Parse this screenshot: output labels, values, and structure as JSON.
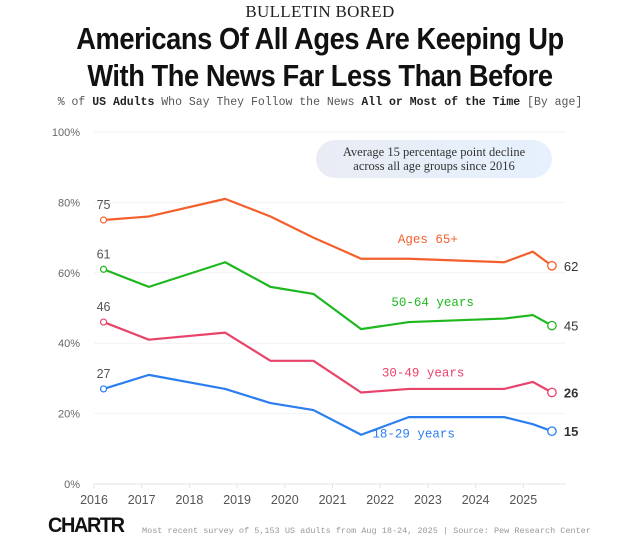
{
  "header": {
    "kicker": "BULLETIN BORED",
    "title_line1": "Americans Of All Ages Are Keeping Up",
    "title_line2": "With The News Far Less Than Before",
    "subtitle_parts": [
      "% of ",
      "US Adults",
      " Who Say They Follow the News ",
      "All or Most of the Time",
      " [By age]"
    ]
  },
  "annotation": {
    "line1": "Average 15 percentage point decline",
    "line2": "across all age groups since 2016"
  },
  "footer": {
    "logo": "CHARTR",
    "note": "Most recent survey of 5,153 US adults from Aug 18-24, 2025 | Source: Pew Research Center"
  },
  "chart_data": {
    "type": "line",
    "title": "Americans Of All Ages Are Keeping Up With The News Far Less Than Before",
    "subtitle": "% of US Adults Who Say They Follow the News All or Most of the Time [By age]",
    "xlabel": "",
    "ylabel": "",
    "xlim": [
      2016,
      2025.6
    ],
    "ylim": [
      0,
      100
    ],
    "x_ticks": [
      2016,
      2017,
      2018,
      2019,
      2020,
      2021,
      2022,
      2023,
      2024,
      2025
    ],
    "x_tick_labels": [
      "2016",
      "2017",
      "2018",
      "2019",
      "2020",
      "2021",
      "2022",
      "2023",
      "2024",
      "2025"
    ],
    "y_ticks": [
      0,
      20,
      40,
      60,
      80,
      100
    ],
    "y_tick_labels": [
      "0%",
      "20%",
      "40%",
      "60%",
      "80%",
      "100%"
    ],
    "grid": true,
    "x": [
      2016.2,
      2017.15,
      2018.75,
      2019.7,
      2020.6,
      2021.6,
      2022.6,
      2024.6,
      2025.2,
      2025.6
    ],
    "series": [
      {
        "name": "Ages 65+",
        "color": "#f4602d",
        "values": [
          75,
          76,
          81,
          76,
          70,
          64,
          64,
          63,
          66,
          62
        ],
        "start_label": "75",
        "end_label": "62",
        "label_x": 2023.0,
        "label_y": 68.5
      },
      {
        "name": "50-64 years",
        "color": "#1eb81e",
        "values": [
          61,
          56,
          63,
          56,
          54,
          44,
          46,
          47,
          48,
          45
        ],
        "start_label": "61",
        "end_label": "45",
        "label_x": 2023.1,
        "label_y": 50.5
      },
      {
        "name": "30-49 years",
        "color": "#e8436a",
        "values": [
          46,
          41,
          43,
          35,
          35,
          26,
          27,
          27,
          29,
          26
        ],
        "start_label": "46",
        "end_label": "26",
        "label_x": 2022.9,
        "label_y": 30.5
      },
      {
        "name": "18-29 years",
        "color": "#2a7ef0",
        "values": [
          27,
          31,
          27,
          23,
          21,
          14,
          19,
          19,
          17,
          15
        ],
        "start_label": "27",
        "end_label": "15",
        "label_x": 2022.7,
        "label_y": 13.2
      }
    ]
  }
}
